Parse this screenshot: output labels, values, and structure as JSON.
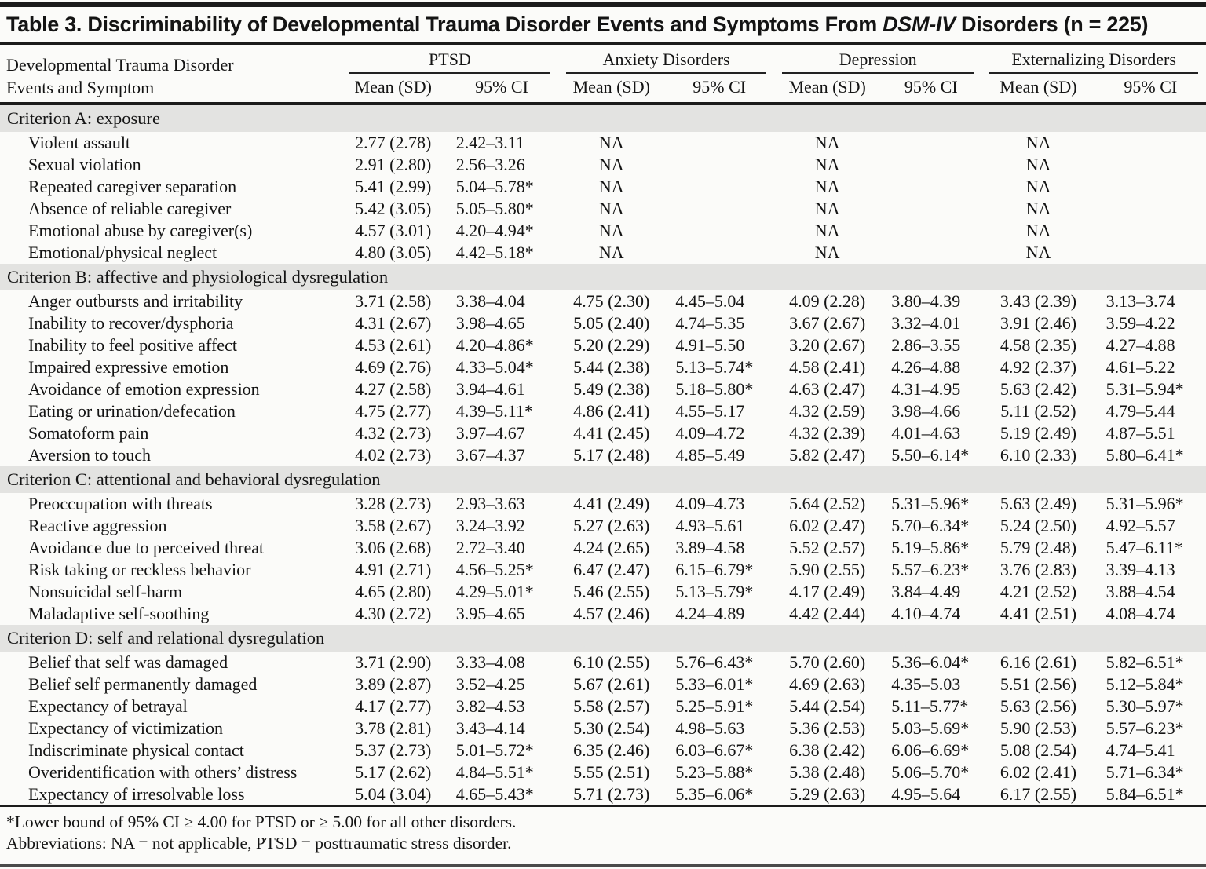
{
  "title": {
    "prefix": "Table 3. Discriminability of Developmental Trauma Disorder Events and Symptoms From ",
    "italic": "DSM-IV",
    "suffix": " Disorders (n = 225)"
  },
  "header": {
    "row_label_line1": "Developmental Trauma Disorder",
    "row_label_line2": "Events and Symptom",
    "groups": [
      "PTSD",
      "Anxiety Disorders",
      "Depression",
      "Externalizing Disorders"
    ],
    "subheaders": [
      "Mean (SD)",
      "95% CI"
    ]
  },
  "sections": [
    {
      "label": "Criterion A: exposure",
      "rows": [
        {
          "label": "Violent assault",
          "cells": [
            "2.77 (2.78)",
            "2.42–3.11",
            "NA",
            "",
            "NA",
            "",
            "NA",
            ""
          ]
        },
        {
          "label": "Sexual violation",
          "cells": [
            "2.91 (2.80)",
            "2.56–3.26",
            "NA",
            "",
            "NA",
            "",
            "NA",
            ""
          ]
        },
        {
          "label": "Repeated caregiver separation",
          "cells": [
            "5.41 (2.99)",
            "5.04–5.78*",
            "NA",
            "",
            "NA",
            "",
            "NA",
            ""
          ]
        },
        {
          "label": "Absence of reliable caregiver",
          "cells": [
            "5.42 (3.05)",
            "5.05–5.80*",
            "NA",
            "",
            "NA",
            "",
            "NA",
            ""
          ]
        },
        {
          "label": "Emotional abuse by caregiver(s)",
          "cells": [
            "4.57 (3.01)",
            "4.20–4.94*",
            "NA",
            "",
            "NA",
            "",
            "NA",
            ""
          ]
        },
        {
          "label": "Emotional/physical neglect",
          "cells": [
            "4.80 (3.05)",
            "4.42–5.18*",
            "NA",
            "",
            "NA",
            "",
            "NA",
            ""
          ]
        }
      ]
    },
    {
      "label": "Criterion B: affective and physiological dysregulation",
      "rows": [
        {
          "label": "Anger outbursts and irritability",
          "cells": [
            "3.71 (2.58)",
            "3.38–4.04",
            "4.75 (2.30)",
            "4.45–5.04",
            "4.09 (2.28)",
            "3.80–4.39",
            "3.43 (2.39)",
            "3.13–3.74"
          ]
        },
        {
          "label": "Inability to recover/dysphoria",
          "cells": [
            "4.31 (2.67)",
            "3.98–4.65",
            "5.05 (2.40)",
            "4.74–5.35",
            "3.67 (2.67)",
            "3.32–4.01",
            "3.91 (2.46)",
            "3.59–4.22"
          ]
        },
        {
          "label": "Inability to feel positive affect",
          "cells": [
            "4.53 (2.61)",
            "4.20–4.86*",
            "5.20 (2.29)",
            "4.91–5.50",
            "3.20 (2.67)",
            "2.86–3.55",
            "4.58 (2.35)",
            "4.27–4.88"
          ]
        },
        {
          "label": "Impaired expressive emotion",
          "cells": [
            "4.69 (2.76)",
            "4.33–5.04*",
            "5.44 (2.38)",
            "5.13–5.74*",
            "4.58 (2.41)",
            "4.26–4.88",
            "4.92 (2.37)",
            "4.61–5.22"
          ]
        },
        {
          "label": "Avoidance of emotion expression",
          "cells": [
            "4.27 (2.58)",
            "3.94–4.61",
            "5.49 (2.38)",
            "5.18–5.80*",
            "4.63 (2.47)",
            "4.31–4.95",
            "5.63 (2.42)",
            "5.31–5.94*"
          ]
        },
        {
          "label": "Eating or urination/defecation",
          "cells": [
            "4.75 (2.77)",
            "4.39–5.11*",
            "4.86 (2.41)",
            "4.55–5.17",
            "4.32 (2.59)",
            "3.98–4.66",
            "5.11 (2.52)",
            "4.79–5.44"
          ]
        },
        {
          "label": "Somatoform pain",
          "cells": [
            "4.32 (2.73)",
            "3.97–4.67",
            "4.41 (2.45)",
            "4.09–4.72",
            "4.32 (2.39)",
            "4.01–4.63",
            "5.19 (2.49)",
            "4.87–5.51"
          ]
        },
        {
          "label": "Aversion to touch",
          "cells": [
            "4.02 (2.73)",
            "3.67–4.37",
            "5.17 (2.48)",
            "4.85–5.49",
            "5.82 (2.47)",
            "5.50–6.14*",
            "6.10 (2.33)",
            "5.80–6.41*"
          ]
        }
      ]
    },
    {
      "label": "Criterion C: attentional and behavioral dysregulation",
      "rows": [
        {
          "label": "Preoccupation with threats",
          "cells": [
            "3.28 (2.73)",
            "2.93–3.63",
            "4.41 (2.49)",
            "4.09–4.73",
            "5.64 (2.52)",
            "5.31–5.96*",
            "5.63 (2.49)",
            "5.31–5.96*"
          ]
        },
        {
          "label": "Reactive aggression",
          "cells": [
            "3.58 (2.67)",
            "3.24–3.92",
            "5.27 (2.63)",
            "4.93–5.61",
            "6.02 (2.47)",
            "5.70–6.34*",
            "5.24 (2.50)",
            "4.92–5.57"
          ]
        },
        {
          "label": "Avoidance due to perceived threat",
          "cells": [
            "3.06 (2.68)",
            "2.72–3.40",
            "4.24 (2.65)",
            "3.89–4.58",
            "5.52 (2.57)",
            "5.19–5.86*",
            "5.79 (2.48)",
            "5.47–6.11*"
          ]
        },
        {
          "label": "Risk taking or reckless behavior",
          "cells": [
            "4.91 (2.71)",
            "4.56–5.25*",
            "6.47 (2.47)",
            "6.15–6.79*",
            "5.90 (2.55)",
            "5.57–6.23*",
            "3.76 (2.83)",
            "3.39–4.13"
          ]
        },
        {
          "label": "Nonsuicidal self-harm",
          "cells": [
            "4.65 (2.80)",
            "4.29–5.01*",
            "5.46 (2.55)",
            "5.13–5.79*",
            "4.17 (2.49)",
            "3.84–4.49",
            "4.21 (2.52)",
            "3.88–4.54"
          ]
        },
        {
          "label": "Maladaptive self-soothing",
          "cells": [
            "4.30 (2.72)",
            "3.95–4.65",
            "4.57 (2.46)",
            "4.24–4.89",
            "4.42 (2.44)",
            "4.10–4.74",
            "4.41 (2.51)",
            "4.08–4.74"
          ]
        }
      ]
    },
    {
      "label": "Criterion D: self and relational dysregulation",
      "rows": [
        {
          "label": "Belief that self was damaged",
          "cells": [
            "3.71 (2.90)",
            "3.33–4.08",
            "6.10 (2.55)",
            "5.76–6.43*",
            "5.70 (2.60)",
            "5.36–6.04*",
            "6.16 (2.61)",
            "5.82–6.51*"
          ]
        },
        {
          "label": "Belief self permanently damaged",
          "cells": [
            "3.89 (2.87)",
            "3.52–4.25",
            "5.67 (2.61)",
            "5.33–6.01*",
            "4.69 (2.63)",
            "4.35–5.03",
            "5.51 (2.56)",
            "5.12–5.84*"
          ]
        },
        {
          "label": "Expectancy of betrayal",
          "cells": [
            "4.17 (2.77)",
            "3.82–4.53",
            "5.58 (2.57)",
            "5.25–5.91*",
            "5.44 (2.54)",
            "5.11–5.77*",
            "5.63 (2.56)",
            "5.30–5.97*"
          ]
        },
        {
          "label": "Expectancy of victimization",
          "cells": [
            "3.78 (2.81)",
            "3.43–4.14",
            "5.30 (2.54)",
            "4.98–5.63",
            "5.36 (2.53)",
            "5.03–5.69*",
            "5.90 (2.53)",
            "5.57–6.23*"
          ]
        },
        {
          "label": "Indiscriminate physical contact",
          "cells": [
            "5.37 (2.73)",
            "5.01–5.72*",
            "6.35 (2.46)",
            "6.03–6.67*",
            "6.38 (2.42)",
            "6.06–6.69*",
            "5.08 (2.54)",
            "4.74–5.41"
          ]
        },
        {
          "label": "Overidentification with others’ distress",
          "cells": [
            "5.17 (2.62)",
            "4.84–5.51*",
            "5.55 (2.51)",
            "5.23–5.88*",
            "5.38 (2.48)",
            "5.06–5.70*",
            "6.02 (2.41)",
            "5.71–6.34*"
          ]
        },
        {
          "label": "Expectancy of irresolvable loss",
          "cells": [
            "5.04 (3.04)",
            "4.65–5.43*",
            "5.71 (2.73)",
            "5.35–6.06*",
            "5.29 (2.63)",
            "4.95–5.64",
            "6.17 (2.55)",
            "5.84–6.51*"
          ]
        }
      ]
    }
  ],
  "footnotes": [
    "*Lower bound of 95% CI ≥ 4.00 for PTSD or ≥ 5.00 for all other disorders.",
    "Abbreviations: NA = not applicable, PTSD = posttraumatic stress disorder."
  ],
  "colors": {
    "section_band": "#e3e3e1",
    "rule": "#1b1b1b",
    "background": "#fbfbf9",
    "text": "#141414"
  }
}
